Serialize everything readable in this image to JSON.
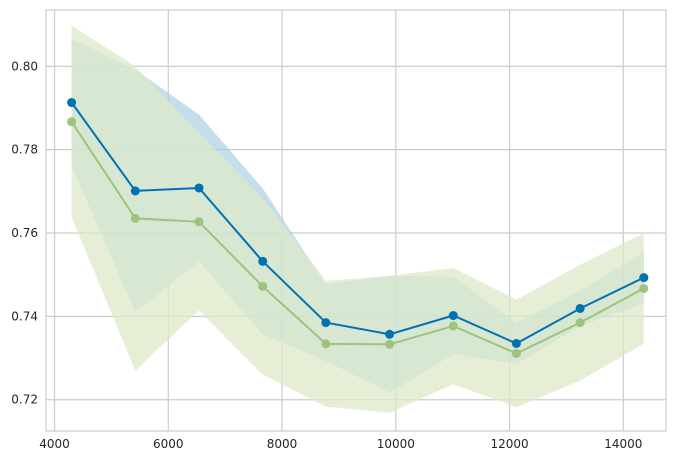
{
  "chart_data": {
    "type": "line",
    "title": "",
    "xlabel": "",
    "ylabel": "",
    "xlim": [
      3850,
      14750
    ],
    "ylim": [
      0.7125,
      0.8135
    ],
    "grid": true,
    "legend": "none",
    "xticks": [
      4000,
      6000,
      8000,
      10000,
      12000,
      14000
    ],
    "xtick_labels": [
      "4000",
      "6000",
      "8000",
      "10000",
      "12000",
      "14000"
    ],
    "yticks": [
      0.72,
      0.74,
      0.76,
      0.78,
      0.8
    ],
    "ytick_labels": [
      "0.72",
      "0.74",
      "0.76",
      "0.78",
      "0.80"
    ],
    "x": [
      4300,
      5420,
      6540,
      7660,
      8770,
      9890,
      11010,
      12120,
      13240,
      14360
    ],
    "series": [
      {
        "color": "#0072b2",
        "band_color": "#a6cde3",
        "values": [
          0.7913,
          0.7701,
          0.7708,
          0.7532,
          0.7385,
          0.7357,
          0.7402,
          0.7335,
          0.7419,
          0.7493
        ],
        "upper": [
          0.8066,
          0.7992,
          0.7884,
          0.7707,
          0.7477,
          0.7497,
          0.7495,
          0.7385,
          0.7461,
          0.7555
        ],
        "lower": [
          0.776,
          0.741,
          0.7532,
          0.7357,
          0.7293,
          0.7217,
          0.7309,
          0.7285,
          0.7377,
          0.7431
        ]
      },
      {
        "color": "#9dc37d",
        "band_color": "#dde9c8",
        "values": [
          0.7867,
          0.7635,
          0.7627,
          0.7472,
          0.7334,
          0.7333,
          0.7377,
          0.7311,
          0.7385,
          0.7467
        ],
        "upper": [
          0.8097,
          0.8,
          0.784,
          0.7684,
          0.7485,
          0.7497,
          0.7516,
          0.744,
          0.7524,
          0.76
        ],
        "lower": [
          0.7638,
          0.727,
          0.7414,
          0.726,
          0.7183,
          0.7169,
          0.7237,
          0.7182,
          0.7246,
          0.7334
        ]
      }
    ]
  }
}
